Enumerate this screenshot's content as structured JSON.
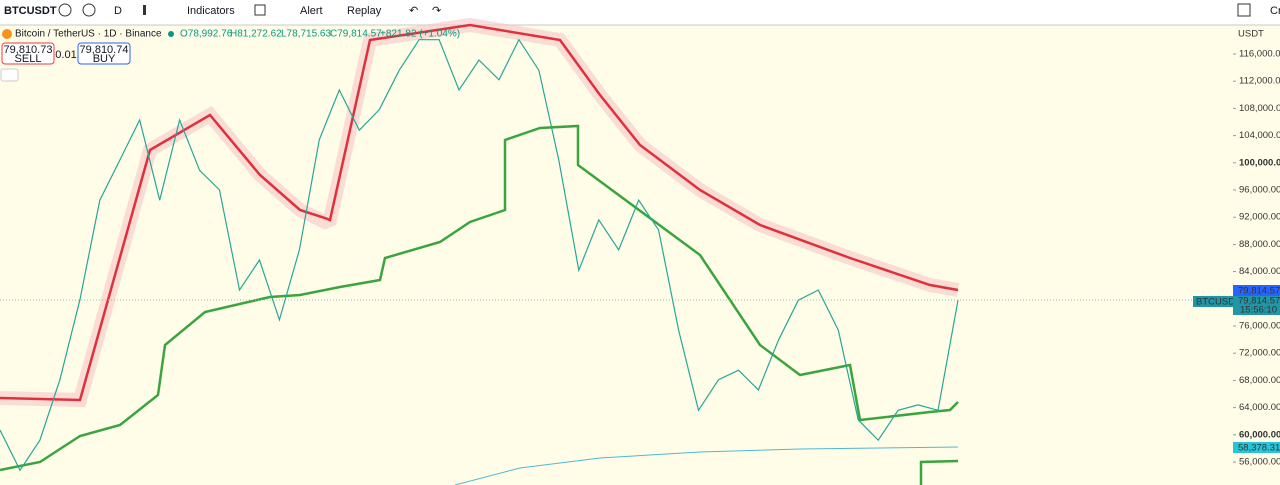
{
  "toolbar": {
    "symbol": "BTCUSDT",
    "interval": "D",
    "indicators": "Indicators",
    "alert": "Alert",
    "replay": "Replay",
    "right_clip": "Cr"
  },
  "legend": {
    "title": "Bitcoin / TetherUS · 1D · Binance",
    "open": "O78,992.76",
    "high": "H81,272.62",
    "low": "L78,715.63",
    "close": "C79,814.57",
    "change": "+821.82 (+1.04%)"
  },
  "trade": {
    "sell_price": "79,810.73",
    "sell": "SELL",
    "spread": "0.01",
    "buy_price": "79,810.74",
    "buy": "BUY"
  },
  "price_axis": {
    "currency": "USDT",
    "ticks": [
      {
        "value": 116000,
        "label": "116,000.00"
      },
      {
        "value": 112000,
        "label": "112,000.00"
      },
      {
        "value": 108000,
        "label": "108,000.00"
      },
      {
        "value": 104000,
        "label": "104,000.00"
      },
      {
        "value": 100000,
        "label": "100,000.00"
      },
      {
        "value": 96000,
        "label": "96,000.00"
      },
      {
        "value": 92000,
        "label": "92,000.00"
      },
      {
        "value": 88000,
        "label": "88,000.00"
      },
      {
        "value": 84000,
        "label": "84,000.00"
      },
      {
        "value": 76000,
        "label": "76,000.00"
      },
      {
        "value": 72000,
        "label": "72,000.00"
      },
      {
        "value": 68000,
        "label": "68,000.00"
      },
      {
        "value": 64000,
        "label": "64,000.00"
      },
      {
        "value": 60000,
        "label": "60,000.00"
      },
      {
        "value": 56000,
        "label": "56,000.00"
      }
    ],
    "last_price": "79,814.57",
    "symbol_tag": "BTCUSDT",
    "tag_price": "79,814.57",
    "countdown": "15:56:10",
    "ma_price": "58,378.31"
  },
  "close_series": [
    60700,
    54800,
    59200,
    68100,
    79800,
    94500,
    100400,
    106300,
    94500,
    106300,
    98900,
    96000,
    81300,
    85700,
    76900,
    87200,
    103400,
    110700,
    104800,
    107800,
    113600,
    118100,
    118100,
    110700,
    115100,
    112200,
    118100,
    113600,
    100400,
    84200,
    91600,
    87200,
    94500,
    90100,
    75400,
    63600,
    68100,
    69500,
    66600,
    73900,
    79800,
    81300,
    75400,
    62200,
    59200,
    63600,
    64400,
    63600,
    79800
  ]
}
